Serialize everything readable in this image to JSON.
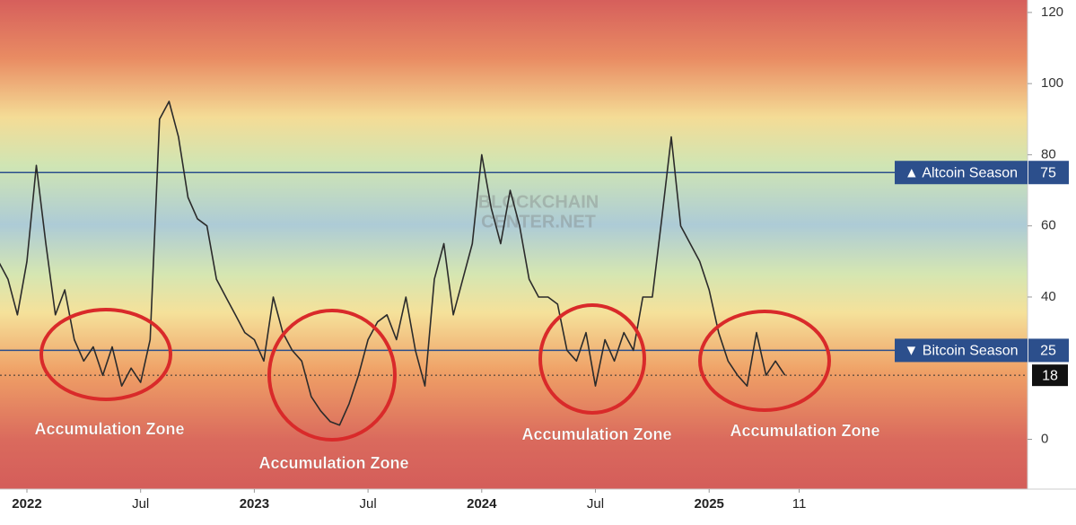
{
  "chart_data": {
    "type": "line",
    "color": "#2b2b2b",
    "x": [
      -1.5,
      -1,
      -0.5,
      0,
      0.5,
      1,
      1.5,
      2,
      2.5,
      3,
      3.5,
      4,
      4.5,
      5,
      5.5,
      6,
      6.5,
      7,
      7.5,
      8,
      8.5,
      9,
      9.5,
      10,
      10.5,
      11,
      11.5,
      12,
      12.5,
      13,
      13.5,
      14,
      14.5,
      15,
      15.5,
      16,
      16.5,
      17,
      17.5,
      18,
      18.5,
      19,
      19.5,
      20,
      20.5,
      21,
      21.5,
      22,
      22.5,
      23,
      23.5,
      24,
      24.5,
      25,
      25.5,
      26,
      26.5,
      27,
      27.5,
      28,
      28.5,
      29,
      29.5,
      30,
      30.5,
      31,
      31.5,
      32,
      32.5,
      33,
      33.5,
      34,
      34.5,
      35,
      35.5,
      36,
      36.5,
      37,
      37.5,
      38,
      38.5,
      39,
      39.5,
      40
    ],
    "values": [
      50,
      45,
      35,
      50,
      77,
      55,
      35,
      42,
      28,
      22,
      26,
      18,
      26,
      15,
      20,
      16,
      28,
      90,
      95,
      85,
      68,
      62,
      60,
      45,
      40,
      35,
      30,
      28,
      22,
      40,
      30,
      25,
      22,
      12,
      8,
      5,
      4,
      10,
      18,
      28,
      33,
      35,
      28,
      40,
      25,
      15,
      45,
      55,
      35,
      45,
      55,
      80,
      65,
      55,
      70,
      60,
      45,
      40,
      40,
      38,
      25,
      22,
      30,
      15,
      28,
      22,
      30,
      25,
      40,
      40,
      62,
      85,
      60,
      55,
      50,
      42,
      30,
      22,
      18,
      15,
      30,
      18,
      22,
      18
    ],
    "xlim": [
      -1.42,
      52.8
    ],
    "xticks": [
      {
        "value": 0,
        "label": "2022"
      },
      {
        "value": 6,
        "label": "Jul"
      },
      {
        "value": 12,
        "label": "2023"
      },
      {
        "value": 18,
        "label": "Jul"
      },
      {
        "value": 24,
        "label": "2024"
      },
      {
        "value": 30,
        "label": "Jul"
      },
      {
        "value": 36,
        "label": "2025"
      },
      {
        "value": 40.75,
        "label": "11"
      }
    ],
    "ylim": [
      -14,
      123.5
    ],
    "yticks": [
      0,
      40,
      60,
      80,
      100,
      120
    ],
    "reference_lines": [
      {
        "label": "▲ Altcoin Season",
        "value": 75,
        "color": "#2c4f8c"
      },
      {
        "label": "▼ Bitcoin Season",
        "value": 25,
        "color": "#2c4f8c"
      }
    ],
    "annotations": [
      "Accumulation Zone",
      "Accumulation Zone",
      "Accumulation Zone",
      "Accumulation Zone"
    ],
    "watermark": [
      "BLOCKCHAIN",
      "CENTER.NET"
    ]
  }
}
